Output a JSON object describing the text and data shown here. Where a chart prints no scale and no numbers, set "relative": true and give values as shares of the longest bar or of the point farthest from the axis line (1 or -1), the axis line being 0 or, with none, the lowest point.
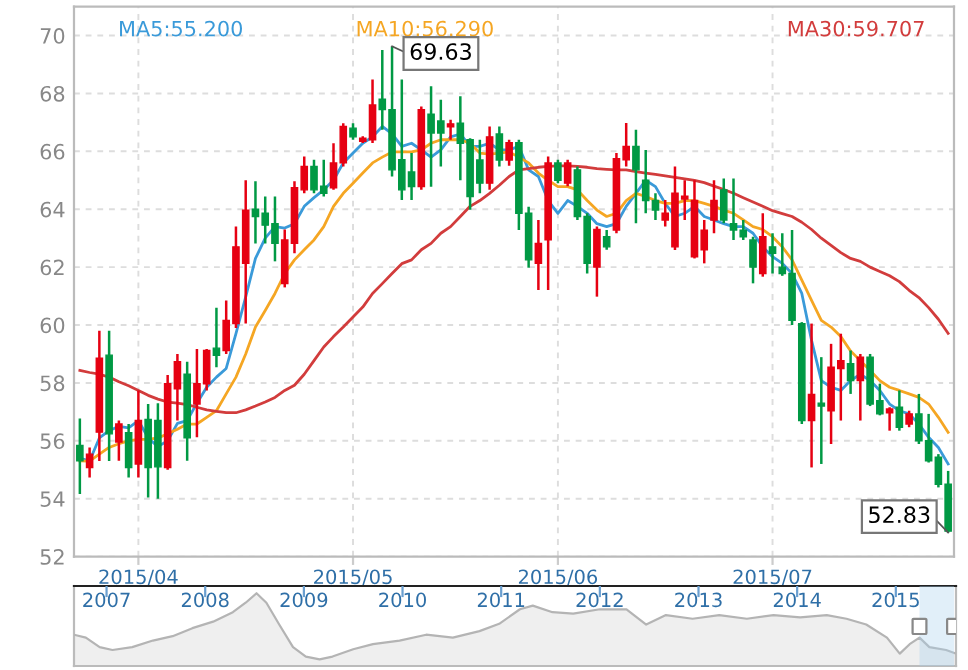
{
  "chart_data": [
    {
      "type": "candlestick",
      "categories": [
        null,
        null,
        null,
        null,
        null,
        null,
        "2015/04",
        null,
        null,
        null,
        null,
        null,
        null,
        null,
        null,
        null,
        null,
        null,
        null,
        null,
        null,
        null,
        null,
        null,
        null,
        null,
        null,
        null,
        "2015/05",
        null,
        null,
        null,
        null,
        null,
        null,
        null,
        null,
        null,
        null,
        null,
        null,
        null,
        null,
        null,
        null,
        null,
        null,
        null,
        null,
        "2015/06",
        null,
        null,
        null,
        null,
        null,
        null,
        null,
        null,
        null,
        null,
        null,
        null,
        null,
        null,
        null,
        null,
        null,
        null,
        null,
        null,
        null,
        "2015/07",
        null,
        null,
        null,
        null,
        null,
        null,
        null,
        null,
        null,
        null,
        null,
        null,
        null,
        null,
        null,
        null,
        null,
        null
      ],
      "ohlc": [
        [
          55.84,
          56.77,
          54.16,
          55.31
        ],
        [
          55.08,
          55.77,
          54.73,
          55.54
        ],
        [
          56.3,
          59.8,
          55.3,
          58.85
        ],
        [
          58.96,
          59.8,
          55.3,
          56.24
        ],
        [
          55.96,
          56.7,
          55.31,
          56.58
        ],
        [
          56.28,
          56.58,
          54.73,
          55.08
        ],
        [
          55.2,
          57.74,
          54.73,
          56.7
        ],
        [
          56.74,
          57.27,
          54.04,
          55.08
        ],
        [
          56.7,
          57.3,
          54.0,
          55.1
        ],
        [
          55.08,
          58.27,
          55.0,
          57.97
        ],
        [
          57.8,
          59.0,
          56.7,
          58.73
        ],
        [
          58.3,
          58.73,
          55.31,
          56.1
        ],
        [
          57.27,
          59.17,
          56.12,
          57.97
        ],
        [
          57.97,
          59.17,
          57.74,
          59.12
        ],
        [
          59.2,
          60.6,
          58.54,
          58.95
        ],
        [
          59.12,
          60.85,
          59.0,
          60.16
        ],
        [
          60.05,
          63.4,
          59.9,
          62.7
        ],
        [
          62.13,
          65.0,
          60.05,
          63.97
        ],
        [
          64.0,
          64.97,
          62.82,
          63.75
        ],
        [
          63.86,
          64.44,
          62.82,
          63.45
        ],
        [
          63.5,
          64.44,
          62.2,
          62.82
        ],
        [
          61.43,
          63.3,
          61.3,
          62.94
        ],
        [
          62.82,
          64.97,
          62.48,
          64.74
        ],
        [
          64.67,
          65.82,
          64.55,
          65.48
        ],
        [
          65.48,
          65.71,
          64.55,
          64.67
        ],
        [
          64.8,
          65.71,
          64.44,
          64.55
        ],
        [
          64.74,
          66.28,
          64.67,
          65.6
        ],
        [
          65.6,
          66.97,
          65.48,
          66.86
        ],
        [
          66.8,
          66.97,
          66.4,
          66.5
        ],
        [
          66.35,
          66.52,
          66.29,
          66.45
        ],
        [
          66.4,
          68.48,
          66.29,
          67.6
        ],
        [
          67.8,
          69.5,
          66.75,
          67.44
        ],
        [
          67.44,
          69.63,
          65.13,
          65.36
        ],
        [
          65.71,
          68.48,
          64.32,
          64.67
        ],
        [
          65.29,
          65.94,
          64.32,
          64.78
        ],
        [
          64.78,
          67.55,
          64.67,
          67.44
        ],
        [
          67.28,
          68.25,
          64.78,
          66.63
        ],
        [
          67.05,
          67.78,
          65.48,
          66.63
        ],
        [
          66.85,
          67.09,
          66.4,
          66.95
        ],
        [
          66.97,
          67.9,
          65.0,
          66.28
        ],
        [
          66.4,
          66.45,
          63.98,
          64.44
        ],
        [
          65.7,
          66.4,
          64.55,
          64.9
        ],
        [
          64.9,
          66.86,
          64.67,
          66.5
        ],
        [
          66.6,
          66.86,
          65.48,
          65.7
        ],
        [
          65.7,
          66.4,
          65.5,
          66.3
        ],
        [
          66.3,
          66.4,
          63.28,
          63.86
        ],
        [
          63.86,
          64.09,
          61.98,
          62.25
        ],
        [
          62.13,
          63.63,
          61.21,
          62.82
        ],
        [
          62.94,
          65.82,
          61.21,
          65.6
        ],
        [
          65.6,
          65.71,
          64.9,
          65.0
        ],
        [
          64.9,
          65.71,
          64.79,
          65.6
        ],
        [
          65.36,
          65.48,
          63.63,
          63.75
        ],
        [
          63.75,
          63.86,
          61.78,
          62.13
        ],
        [
          62.0,
          63.4,
          60.98,
          63.3
        ],
        [
          63.05,
          63.28,
          62.6,
          62.7
        ],
        [
          63.28,
          65.94,
          63.17,
          65.75
        ],
        [
          65.71,
          66.98,
          65.48,
          66.17
        ],
        [
          66.17,
          66.75,
          63.52,
          65.36
        ],
        [
          65.0,
          66.05,
          63.86,
          64.3
        ],
        [
          64.3,
          64.55,
          63.63,
          63.97
        ],
        [
          63.63,
          64.32,
          63.4,
          63.86
        ],
        [
          62.7,
          65.48,
          62.59,
          64.55
        ],
        [
          64.35,
          65.0,
          63.63,
          64.45
        ],
        [
          62.36,
          65.0,
          62.3,
          64.3
        ],
        [
          62.6,
          63.63,
          62.13,
          63.28
        ],
        [
          63.63,
          65.0,
          63.17,
          64.3
        ],
        [
          64.67,
          65.06,
          63.52,
          63.63
        ],
        [
          63.5,
          65.06,
          62.94,
          63.28
        ],
        [
          63.28,
          63.63,
          62.94,
          63.05
        ],
        [
          62.94,
          63.05,
          61.44,
          62.0
        ],
        [
          61.78,
          63.86,
          61.67,
          63.05
        ],
        [
          62.7,
          63.17,
          61.78,
          62.48
        ],
        [
          62.0,
          63.17,
          61.7,
          61.78
        ],
        [
          61.78,
          63.28,
          60.0,
          60.16
        ],
        [
          60.05,
          60.1,
          56.58,
          56.7
        ],
        [
          56.7,
          60.05,
          55.08,
          57.6
        ],
        [
          57.3,
          58.89,
          55.2,
          57.2
        ],
        [
          57.04,
          59.35,
          55.89,
          58.54
        ],
        [
          58.5,
          59.7,
          56.7,
          58.77
        ],
        [
          58.66,
          59.12,
          57.62,
          58.08
        ],
        [
          58.08,
          59.0,
          56.7,
          58.89
        ],
        [
          58.89,
          59.0,
          57.2,
          57.27
        ],
        [
          57.39,
          57.97,
          56.88,
          56.93
        ],
        [
          56.97,
          57.16,
          56.35,
          57.1
        ],
        [
          57.16,
          57.74,
          56.35,
          56.47
        ],
        [
          56.58,
          57.04,
          56.47,
          56.93
        ],
        [
          56.93,
          57.62,
          55.89,
          56.0
        ],
        [
          56.0,
          56.93,
          55.25,
          55.31
        ],
        [
          55.43,
          55.54,
          54.39,
          54.5
        ],
        [
          54.5,
          54.96,
          52.83,
          52.88
        ]
      ],
      "colors": [
        "#009944",
        "#e60012",
        "#e60012",
        "#009944",
        "#e60012",
        "#009944",
        "#e60012",
        "#009944",
        "#009944",
        "#e60012",
        "#e60012",
        "#009944",
        "#e60012",
        "#e60012",
        "#009944",
        "#e60012",
        "#e60012",
        "#e60012",
        "#009944",
        "#009944",
        "#009944",
        "#e60012",
        "#e60012",
        "#e60012",
        "#009944",
        "#009944",
        "#e60012",
        "#e60012",
        "#009944",
        "#e60012",
        "#e60012",
        "#009944",
        "#009944",
        "#009944",
        "#009944",
        "#e60012",
        "#009944",
        "#009944",
        "#e60012",
        "#009944",
        "#009944",
        "#009944",
        "#e60012",
        "#009944",
        "#e60012",
        "#009944",
        "#009944",
        "#e60012",
        "#e60012",
        "#009944",
        "#e60012",
        "#009944",
        "#009944",
        "#e60012",
        "#009944",
        "#e60012",
        "#e60012",
        "#009944",
        "#009944",
        "#009944",
        "#e60012",
        "#e60012",
        "#e60012",
        "#e60012",
        "#e60012",
        "#e60012",
        "#009944",
        "#009944",
        "#009944",
        "#009944",
        "#e60012",
        "#009944",
        "#009944",
        "#009944",
        "#009944",
        "#e60012",
        "#009944",
        "#e60012",
        "#e60012",
        "#009944",
        "#e60012",
        "#009944",
        "#009944",
        "#e60012",
        "#009944",
        "#e60012",
        "#009944",
        "#009944",
        "#009944",
        "#009944"
      ],
      "series": [
        {
          "type": "line",
          "name": "MA5:55.200",
          "color": "#3a9ad9",
          "values": [
            55.4,
            55.3,
            56.1,
            56.35,
            56.5,
            56.45,
            56.7,
            56.1,
            55.8,
            56.0,
            56.6,
            56.7,
            57.3,
            57.85,
            58.2,
            58.5,
            59.7,
            60.97,
            62.3,
            63.0,
            63.4,
            63.35,
            63.5,
            64.1,
            64.4,
            64.67,
            65.0,
            65.6,
            65.94,
            66.28,
            66.5,
            66.86,
            66.6,
            66.17,
            66.28,
            66.05,
            65.8,
            66.05,
            66.5,
            66.6,
            66.17,
            66.17,
            66.28,
            66.05,
            66.05,
            66.17,
            65.36,
            65.13,
            64.3,
            63.86,
            64.3,
            64.1,
            63.86,
            63.5,
            63.4,
            63.5,
            64.1,
            64.55,
            65.0,
            64.78,
            64.2,
            63.75,
            63.86,
            64.1,
            63.75,
            63.63,
            63.5,
            63.4,
            63.4,
            63.17,
            62.7,
            62.36,
            62.13,
            61.78,
            61.09,
            59.47,
            58.08,
            57.85,
            57.74,
            58.08,
            58.3,
            58.08,
            57.74,
            57.27,
            57.04,
            56.93,
            56.58,
            56.12,
            55.77,
            55.2
          ]
        },
        {
          "type": "line",
          "name": "MA10:56.290",
          "color": "#f5a623",
          "values": [
            55.31,
            55.3,
            55.54,
            55.77,
            55.9,
            56.0,
            56.05,
            56.05,
            56.1,
            56.24,
            56.4,
            56.58,
            56.58,
            56.81,
            57.04,
            57.62,
            58.2,
            59.0,
            59.93,
            60.5,
            61.09,
            61.78,
            62.25,
            62.6,
            62.94,
            63.4,
            64.1,
            64.55,
            64.9,
            65.25,
            65.6,
            65.8,
            65.98,
            65.98,
            65.98,
            66.05,
            66.28,
            66.4,
            66.4,
            66.4,
            66.28,
            65.94,
            65.9,
            65.94,
            65.98,
            65.8,
            65.6,
            65.25,
            65.0,
            64.78,
            64.78,
            64.67,
            64.3,
            63.97,
            63.75,
            63.86,
            64.3,
            64.55,
            64.44,
            64.3,
            64.2,
            64.2,
            64.3,
            64.3,
            64.2,
            64.1,
            63.97,
            63.86,
            63.63,
            63.4,
            63.3,
            63.05,
            62.7,
            62.25,
            61.55,
            60.85,
            60.16,
            59.93,
            59.6,
            59.1,
            58.77,
            58.43,
            58.08,
            57.85,
            57.74,
            57.62,
            57.5,
            57.27,
            56.81,
            56.29
          ]
        },
        {
          "type": "line",
          "name": "MA30:59.707",
          "color": "#d23c3c",
          "values": [
            58.43,
            58.36,
            58.3,
            58.2,
            58.04,
            57.9,
            57.74,
            57.57,
            57.44,
            57.34,
            57.3,
            57.25,
            57.16,
            57.07,
            57.02,
            56.97,
            56.97,
            57.07,
            57.2,
            57.34,
            57.5,
            57.74,
            57.92,
            58.3,
            58.77,
            59.24,
            59.6,
            59.93,
            60.28,
            60.62,
            61.09,
            61.43,
            61.78,
            62.12,
            62.25,
            62.6,
            62.82,
            63.17,
            63.4,
            63.75,
            64.1,
            64.3,
            64.55,
            64.83,
            65.13,
            65.36,
            65.4,
            65.45,
            65.48,
            65.5,
            65.5,
            65.48,
            65.45,
            65.4,
            65.38,
            65.36,
            65.36,
            65.3,
            65.25,
            65.2,
            65.15,
            65.1,
            65.05,
            65.0,
            64.92,
            64.8,
            64.68,
            64.55,
            64.4,
            64.25,
            64.1,
            63.95,
            63.85,
            63.75,
            63.55,
            63.3,
            63.0,
            62.75,
            62.5,
            62.3,
            62.2,
            62.0,
            61.85,
            61.7,
            61.5,
            61.2,
            60.95,
            60.6,
            60.2,
            59.71
          ]
        }
      ],
      "ylim": [
        52,
        71
      ],
      "yticks": [
        52,
        54,
        56,
        58,
        60,
        62,
        64,
        66,
        68,
        70
      ],
      "grid": true,
      "legend": "top",
      "annotations": [
        "69.63",
        "52.83"
      ]
    },
    {
      "type": "area",
      "relative": true,
      "color": "#b4b4b4",
      "x": [
        2006.67,
        2006.79,
        2006.93,
        2007.06,
        2007.26,
        2007.47,
        2007.67,
        2007.87,
        2008.08,
        2008.28,
        2008.41,
        2008.52,
        2008.62,
        2008.75,
        2008.89,
        2009.02,
        2009.16,
        2009.29,
        2009.5,
        2009.7,
        2009.97,
        2010.24,
        2010.51,
        2010.78,
        2010.98,
        2011.19,
        2011.32,
        2011.52,
        2011.73,
        2012.0,
        2012.27,
        2012.47,
        2012.67,
        2012.94,
        2013.21,
        2013.49,
        2013.76,
        2014.03,
        2014.3,
        2014.5,
        2014.7,
        2014.91,
        2015.04,
        2015.14,
        2015.24,
        2015.34,
        2015.51,
        2015.61
      ],
      "values": [
        0.43,
        0.39,
        0.26,
        0.22,
        0.26,
        0.35,
        0.41,
        0.52,
        0.61,
        0.74,
        0.87,
        1.0,
        0.87,
        0.57,
        0.26,
        0.13,
        0.09,
        0.13,
        0.23,
        0.3,
        0.35,
        0.43,
        0.39,
        0.48,
        0.58,
        0.78,
        0.83,
        0.74,
        0.72,
        0.78,
        0.78,
        0.57,
        0.7,
        0.65,
        0.7,
        0.65,
        0.7,
        0.67,
        0.7,
        0.65,
        0.57,
        0.39,
        0.17,
        0.3,
        0.39,
        0.26,
        0.22,
        0.17
      ],
      "xlim": [
        2006.67,
        2015.61
      ],
      "xticks": [
        2007,
        2008,
        2009,
        2010,
        2011,
        2012,
        2013,
        2014,
        2015
      ],
      "bands": [
        {
          "axis": "x",
          "from": 2015.24,
          "to": 2015.59,
          "color": "#a8d0ef"
        }
      ]
    }
  ]
}
